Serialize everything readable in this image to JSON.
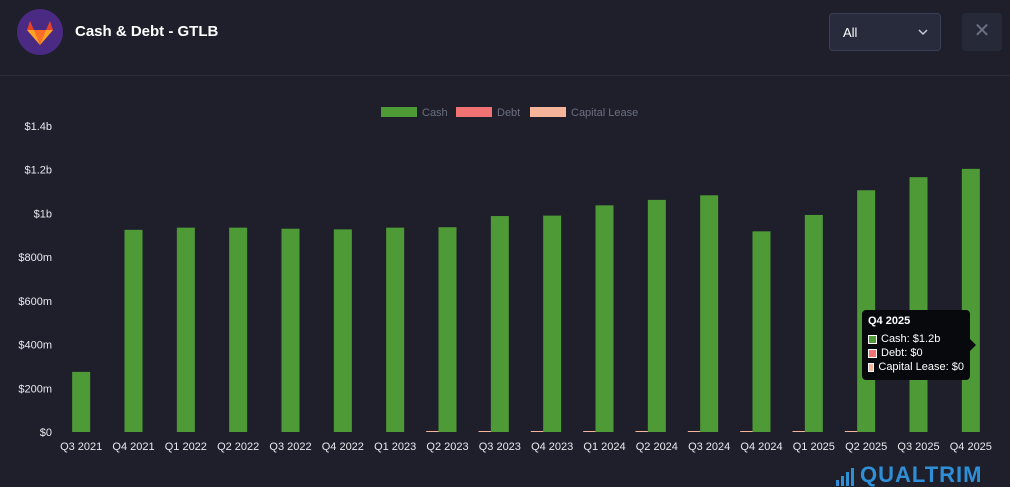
{
  "header": {
    "title": "Cash & Debt - GTLB",
    "logo_icon": "gitlab-fox-icon",
    "period_select": "All",
    "close_symbol": "✕"
  },
  "colors": {
    "cash": "#4e9a36",
    "debt": "#f07272",
    "capital_lease": "#f6b49a"
  },
  "chart_data": {
    "type": "bar",
    "title": "",
    "xlabel": "",
    "ylabel": "",
    "categories": [
      "Q3 2021",
      "Q4 2021",
      "Q1 2022",
      "Q2 2022",
      "Q3 2022",
      "Q4 2022",
      "Q1 2023",
      "Q2 2023",
      "Q3 2023",
      "Q4 2023",
      "Q1 2024",
      "Q2 2024",
      "Q3 2024",
      "Q4 2024",
      "Q1 2025",
      "Q2 2025",
      "Q3 2025",
      "Q4 2025"
    ],
    "series": [
      {
        "name": "Cash",
        "values": [
          275,
          925,
          935,
          935,
          930,
          927,
          935,
          937,
          988,
          990,
          1037,
          1062,
          1083,
          918,
          993,
          1106,
          1166,
          1204
        ]
      },
      {
        "name": "Debt",
        "values": [
          0,
          0,
          0,
          0,
          0,
          0,
          0,
          0,
          0,
          0,
          0,
          0,
          0,
          0,
          0,
          0,
          0,
          0
        ]
      },
      {
        "name": "Capital Lease",
        "values": [
          0,
          0,
          0,
          0,
          0,
          0,
          3,
          3,
          3,
          3,
          3,
          3,
          3,
          3,
          3,
          0,
          0,
          0
        ]
      }
    ],
    "ylim": [
      0,
      1400
    ],
    "yticks": [
      0,
      200,
      400,
      600,
      800,
      1000,
      1200,
      1400
    ],
    "ytick_labels": [
      "$0",
      "$200m",
      "$400m",
      "$600m",
      "$800m",
      "$1b",
      "$1.2b",
      "$1.4b"
    ],
    "legend": [
      "Cash",
      "Debt",
      "Capital Lease"
    ],
    "legend_position": "top-center",
    "grid": false
  },
  "tooltip": {
    "title": "Q4 2025",
    "rows": [
      "Cash: $1.2b",
      "Debt: $0",
      "Capital Lease: $0"
    ]
  },
  "brand": {
    "name": "QUALTRIM"
  }
}
